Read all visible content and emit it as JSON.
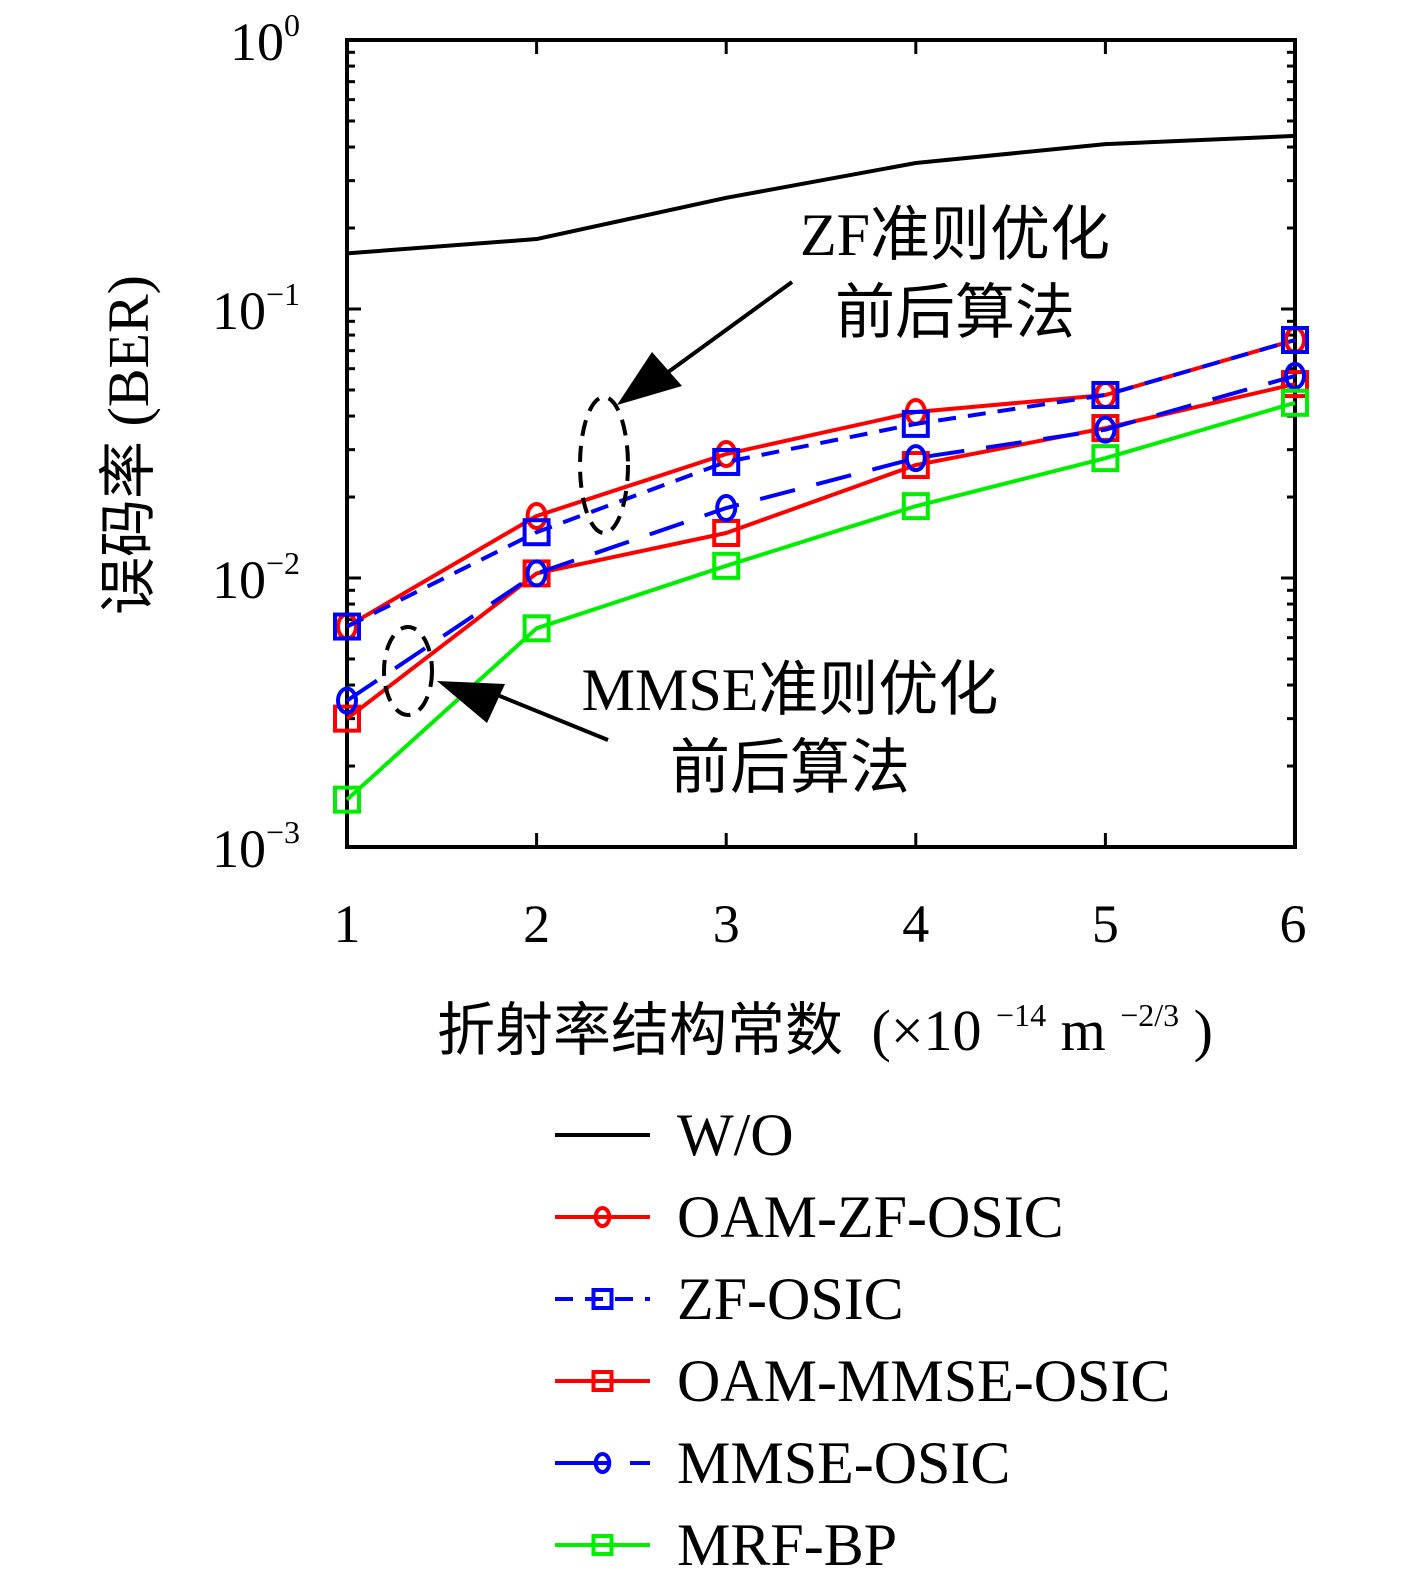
{
  "chart_data": {
    "type": "line",
    "title": "",
    "xlabel": "折射率结构常数 (×10^-14 m^-2/3)",
    "xlabel_parts": {
      "cjk": "折射率结构常数",
      "open": "(×10",
      "exp1": "−14",
      "unit": " m",
      "exp2": "−2/3",
      "close": ")"
    },
    "ylabel": "误码率 (BER)",
    "x": [
      1,
      2,
      3,
      4,
      5,
      6
    ],
    "x_tick_labels": [
      "1",
      "2",
      "3",
      "4",
      "5",
      "6"
    ],
    "xlim": [
      1,
      6
    ],
    "yscale": "log",
    "ylim": [
      0.001,
      1
    ],
    "y_ticks": [
      {
        "value": 1,
        "base": "10",
        "exp": "0"
      },
      {
        "value": 0.1,
        "base": "10",
        "exp": "−1"
      },
      {
        "value": 0.01,
        "base": "10",
        "exp": "−2"
      },
      {
        "value": 0.001,
        "base": "10",
        "exp": "−3"
      }
    ],
    "grid": false,
    "legend_position": "below",
    "series": [
      {
        "name": "W/O",
        "color": "#000000",
        "dash": "solid",
        "marker": "none",
        "values": [
          0.161,
          0.182,
          0.259,
          0.349,
          0.41,
          0.44
        ]
      },
      {
        "name": "OAM-ZF-OSIC",
        "color": "#ff0000",
        "dash": "solid",
        "marker": "circle",
        "values": [
          0.0066,
          0.017,
          0.0289,
          0.0414,
          0.0479,
          0.0767
        ]
      },
      {
        "name": "ZF-OSIC",
        "color": "#0000ff",
        "dash": "dashed",
        "marker": "square",
        "values": [
          0.0066,
          0.0148,
          0.027,
          0.0374,
          0.0479,
          0.0767
        ]
      },
      {
        "name": "OAM-MMSE-OSIC",
        "color": "#ff0000",
        "dash": "solid",
        "marker": "square",
        "values": [
          0.003,
          0.0104,
          0.0147,
          0.0263,
          0.0361,
          0.0526
        ]
      },
      {
        "name": "MMSE-OSIC",
        "color": "#0000ff",
        "dash": "longdash",
        "marker": "circle",
        "values": [
          0.0035,
          0.0104,
          0.0182,
          0.0279,
          0.0356,
          0.0564
        ]
      },
      {
        "name": "MRF-BP",
        "color": "#00ee00",
        "dash": "solid",
        "marker": "square",
        "values": [
          0.0015,
          0.0065,
          0.0111,
          0.0185,
          0.0279,
          0.0448
        ]
      }
    ],
    "annotations": [
      {
        "name": "zf-annotation",
        "lines": [
          "ZF准则优化",
          "前后算法"
        ],
        "points_to": {
          "x": 2.4,
          "y": 0.02
        }
      },
      {
        "name": "mmse-annotation",
        "lines": [
          "MMSE准则优化",
          "前后算法"
        ],
        "points_to": {
          "x": 1.35,
          "y": 0.0045
        }
      }
    ]
  }
}
